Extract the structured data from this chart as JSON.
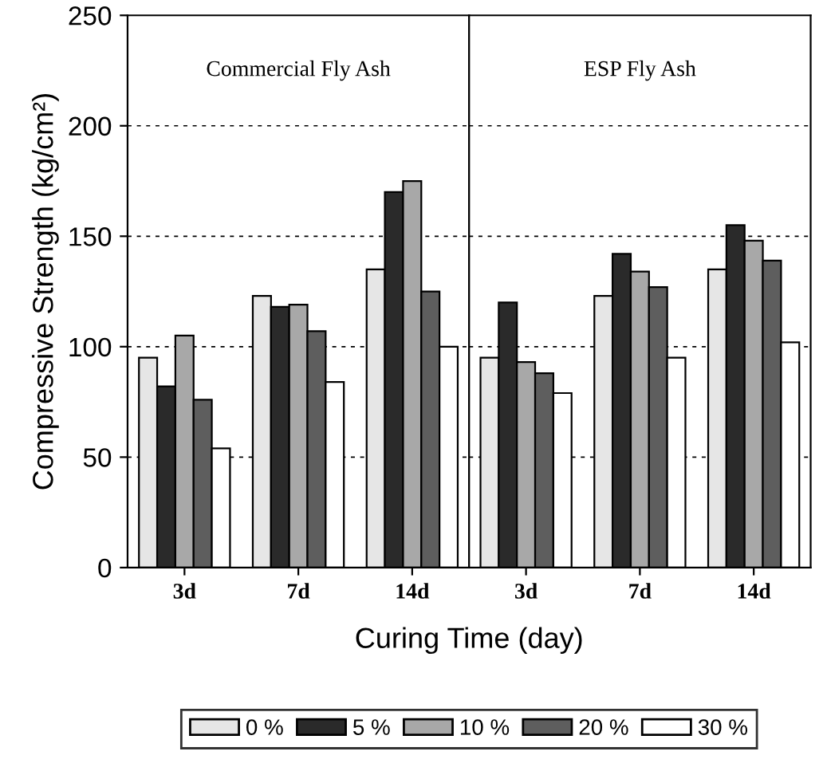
{
  "chart_data": [
    {
      "type": "bar",
      "xlabel": "Curing Time (day)",
      "ylabel": "Compressive Strength (kg/cm²)",
      "categories": [
        "3d",
        "7d",
        "14d"
      ],
      "series": [
        {
          "name": "0 %",
          "color": "#e6e6e6",
          "values": [
            95,
            123,
            135
          ]
        },
        {
          "name": "5 %",
          "color": "#2a2a2a",
          "values": [
            82,
            118,
            170
          ]
        },
        {
          "name": "10 %",
          "color": "#a8a8a8",
          "values": [
            105,
            119,
            175
          ]
        },
        {
          "name": "20 %",
          "color": "#5e5e5e",
          "values": [
            76,
            107,
            125
          ]
        },
        {
          "name": "30 %",
          "color": "#ffffff",
          "values": [
            54,
            84,
            100
          ]
        }
      ],
      "ylim": [
        0,
        250
      ],
      "yticks": [
        0,
        50,
        100,
        150,
        200,
        250
      ],
      "grid": "y",
      "legend": "bottom",
      "annotations": [
        "Commercial Fly Ash"
      ]
    },
    {
      "type": "bar",
      "categories": [
        "3d",
        "7d",
        "14d"
      ],
      "series": [
        {
          "color": "#e6e6e6",
          "values": [
            95,
            123,
            135
          ]
        },
        {
          "color": "#2a2a2a",
          "values": [
            120,
            142,
            155
          ]
        },
        {
          "color": "#a8a8a8",
          "values": [
            93,
            134,
            148
          ]
        },
        {
          "color": "#5e5e5e",
          "values": [
            88,
            127,
            139
          ]
        },
        {
          "color": "#ffffff",
          "values": [
            79,
            95,
            102
          ]
        }
      ],
      "ylim": [
        0,
        250
      ],
      "yticks": [
        0,
        50,
        100,
        150,
        200,
        250
      ],
      "grid": "y",
      "tick_labels": "x",
      "annotations": [
        "ESP Fly Ash"
      ]
    }
  ]
}
